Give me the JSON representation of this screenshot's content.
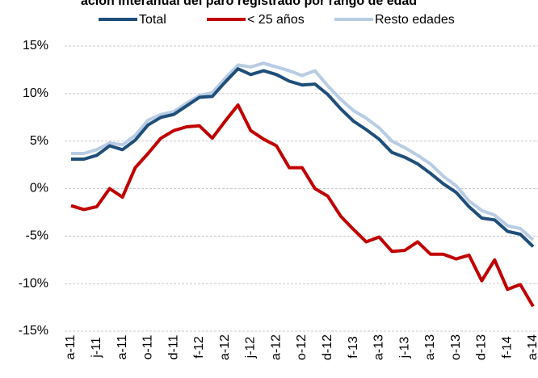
{
  "chart_data": {
    "type": "line",
    "title": "ación interanual del paro registrado por rango de edad",
    "categories": [
      "a-11",
      null,
      "j-11",
      null,
      "a-11",
      null,
      "o-11",
      null,
      "d-11",
      null,
      "f-12",
      null,
      "a-12",
      null,
      "j-12",
      null,
      "a-12",
      null,
      "o-12",
      null,
      "d-12",
      null,
      "f-13",
      null,
      "a-13",
      null,
      "j-13",
      null,
      "a-13",
      null,
      "o-13",
      null,
      "d-13",
      null,
      "f-14",
      null,
      "a-14"
    ],
    "series": [
      {
        "name": "Total",
        "color": "#1f4e79",
        "values": [
          3.1,
          3.1,
          3.5,
          4.5,
          4.1,
          5.1,
          6.7,
          7.5,
          7.8,
          8.7,
          9.6,
          9.7,
          11.2,
          12.6,
          12.0,
          12.4,
          12.0,
          11.3,
          10.9,
          11.0,
          9.9,
          8.4,
          7.1,
          6.2,
          5.2,
          3.8,
          3.3,
          2.6,
          1.6,
          0.5,
          -0.4,
          -1.9,
          -3.1,
          -3.3,
          -4.5,
          -4.8,
          -6.1
        ]
      },
      {
        "name": "< 25 años",
        "color": "#c00000",
        "values": [
          -1.8,
          -2.2,
          -1.9,
          0,
          -0.9,
          2.2,
          3.7,
          5.3,
          6.1,
          6.5,
          6.6,
          5.3,
          7.1,
          8.8,
          6.1,
          5.2,
          4.5,
          2.2,
          2.2,
          0,
          -0.8,
          -2.9,
          -4.3,
          -5.6,
          -5.1,
          -6.6,
          -6.5,
          -5.6,
          -6.9,
          -6.9,
          -7.4,
          -7.0,
          -9.7,
          -7.5,
          -10.6,
          -10.1,
          -12.4
        ]
      },
      {
        "name": "Resto edades",
        "color": "#b8cce4",
        "values": [
          3.7,
          3.7,
          4.1,
          4.8,
          4.6,
          5.6,
          7.2,
          7.8,
          8.1,
          9.0,
          9.8,
          10.1,
          11.6,
          13.0,
          12.8,
          13.2,
          12.8,
          12.4,
          11.9,
          12.4,
          10.8,
          9.4,
          8.2,
          7.4,
          6.4,
          5.0,
          4.3,
          3.5,
          2.6,
          1.3,
          0.3,
          -1.3,
          -2.3,
          -2.8,
          -3.9,
          -4.2,
          -5.4
        ]
      }
    ],
    "ylim": [
      -15,
      15
    ],
    "yticks": [
      {
        "value": -15,
        "label": "-15%"
      },
      {
        "value": -10,
        "label": "-10%"
      },
      {
        "value": -5,
        "label": "-5%"
      },
      {
        "value": 0,
        "label": "0%"
      },
      {
        "value": 5,
        "label": "5%"
      },
      {
        "value": 10,
        "label": "10%"
      },
      {
        "value": 15,
        "label": "15%"
      }
    ],
    "grid": true
  }
}
